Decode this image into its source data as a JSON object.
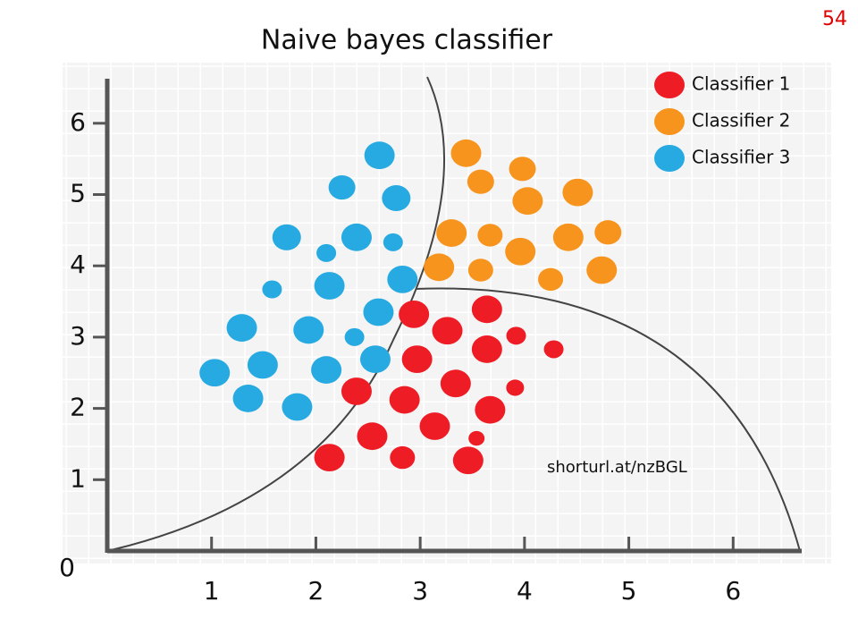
{
  "chart_data": {
    "type": "scatter",
    "title": "Naive bayes classifier",
    "page_number": "54",
    "annotation": "shorturl.at/nzBGL",
    "xlim": [
      0,
      6.64
    ],
    "ylim": [
      0,
      6.6
    ],
    "xticks": [
      0,
      1,
      2,
      3,
      4,
      5,
      6
    ],
    "yticks": [
      1,
      2,
      3,
      4,
      5,
      6
    ],
    "legend": "top-right",
    "series": [
      {
        "name": "Classifier 1",
        "color": "#ee1c25",
        "x": [
          3.64,
          2.94,
          3.26,
          3.92,
          3.64,
          4.28,
          2.97,
          2.39,
          3.34,
          3.91,
          2.85,
          3.67,
          3.14,
          2.54,
          3.54,
          2.13,
          2.83,
          3.46
        ],
        "values": [
          3.39,
          3.32,
          3.09,
          3.02,
          2.83,
          2.83,
          2.69,
          2.24,
          2.35,
          2.29,
          2.12,
          1.98,
          1.75,
          1.61,
          1.58,
          1.31,
          1.31,
          1.27
        ],
        "sizes": [
          16,
          16,
          16,
          10,
          16,
          10,
          16,
          16,
          16,
          9,
          16,
          16,
          16,
          16,
          8,
          16,
          13,
          16
        ]
      },
      {
        "name": "Classifier 2",
        "color": "#f7941d",
        "x": [
          3.44,
          3.58,
          3.98,
          4.03,
          4.51,
          3.3,
          3.67,
          3.96,
          4.42,
          4.8,
          3.18,
          3.58,
          4.25,
          4.74
        ],
        "values": [
          5.58,
          5.18,
          5.36,
          4.91,
          5.03,
          4.46,
          4.43,
          4.2,
          4.4,
          4.47,
          3.98,
          3.94,
          3.81,
          3.94
        ],
        "sizes": [
          16,
          14,
          14,
          16,
          16,
          16,
          13,
          16,
          16,
          14,
          16,
          13,
          13,
          16
        ]
      },
      {
        "name": "Classifier 3",
        "color": "#27aae1",
        "x": [
          2.61,
          2.25,
          2.77,
          1.72,
          2.39,
          2.1,
          2.74,
          1.58,
          2.13,
          2.83,
          2.6,
          1.29,
          1.93,
          2.37,
          1.03,
          1.49,
          2.1,
          2.57,
          1.35,
          1.82
        ],
        "values": [
          5.55,
          5.1,
          4.95,
          4.4,
          4.4,
          4.18,
          4.33,
          3.67,
          3.72,
          3.81,
          3.35,
          3.13,
          3.1,
          3.0,
          2.5,
          2.61,
          2.54,
          2.69,
          2.14,
          2.02
        ],
        "sizes": [
          16,
          14,
          15,
          15,
          16,
          10,
          10,
          10,
          16,
          16,
          16,
          16,
          16,
          10,
          16,
          16,
          16,
          16,
          16,
          16
        ]
      }
    ]
  }
}
